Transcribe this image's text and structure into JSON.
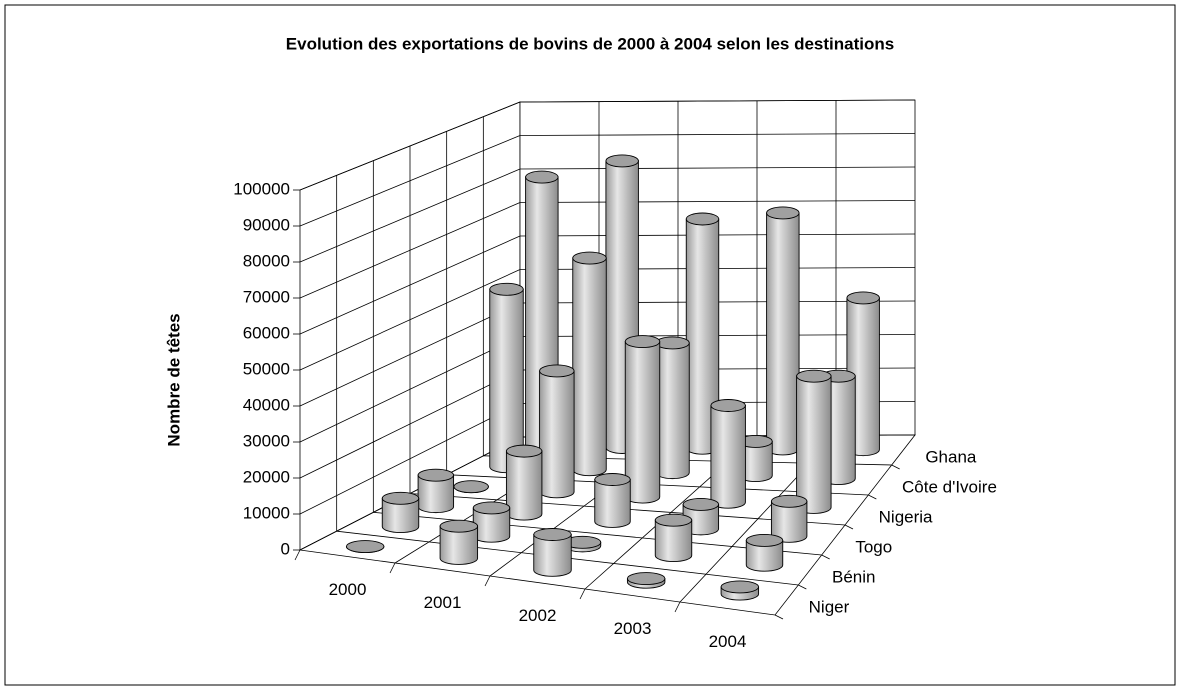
{
  "chart_data": {
    "type": "bar3d",
    "title": "Evolution des exportations de bovins de 2000 à 2004 selon les destinations",
    "y_label": "Nombre de têtes",
    "categories": [
      "2000",
      "2001",
      "2002",
      "2003",
      "2004"
    ],
    "series": [
      {
        "name": "Niger",
        "values": [
          0,
          9000,
          10000,
          1000,
          2000
        ]
      },
      {
        "name": "Bénin",
        "values": [
          8000,
          8000,
          1000,
          10000,
          7000
        ]
      },
      {
        "name": "Togo",
        "values": [
          9000,
          18000,
          12000,
          7000,
          10000
        ]
      },
      {
        "name": "Nigeria",
        "values": [
          0,
          35000,
          45000,
          28000,
          38000
        ]
      },
      {
        "name": "Côte d'Ivoire",
        "values": [
          52000,
          62000,
          38000,
          10000,
          30000
        ]
      },
      {
        "name": "Ghana",
        "values": [
          80000,
          85000,
          68000,
          70000,
          45000
        ]
      }
    ],
    "color": "#c8c8c8",
    "ylim": [
      0,
      100000
    ],
    "yticks": [
      0,
      10000,
      20000,
      30000,
      40000,
      50000,
      60000,
      70000,
      80000,
      90000,
      100000
    ],
    "grid": true
  }
}
